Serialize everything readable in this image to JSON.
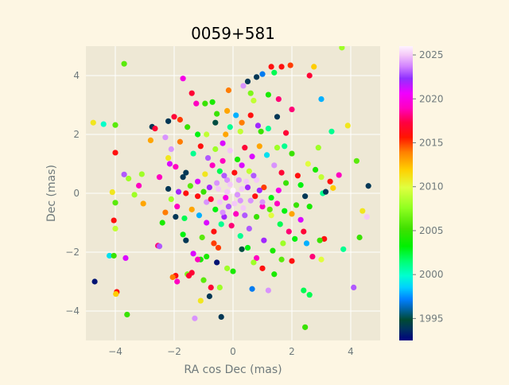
{
  "chart_data": {
    "type": "scatter",
    "title": "0059+581",
    "xlabel": "RA cos Dec (mas)",
    "ylabel": "Dec (mas)",
    "xlim": [
      -5,
      5
    ],
    "ylim": [
      -5,
      5
    ],
    "xticks": [
      -4,
      -2,
      0,
      2,
      4
    ],
    "yticks": [
      -4,
      -2,
      0,
      2,
      4
    ],
    "grid": true,
    "colorbar": {
      "label": "",
      "range": [
        1992.5,
        2026
      ],
      "ticks": [
        1995,
        2000,
        2005,
        2010,
        2015,
        2020,
        2025
      ],
      "colormap": "gist_ncar"
    },
    "points": [
      [
        -4.7,
        -3.0,
        1993
      ],
      [
        -4.4,
        2.35,
        2000
      ],
      [
        -4.75,
        2.4,
        2011
      ],
      [
        -4.2,
        -2.12,
        1999
      ],
      [
        -4.05,
        -2.12,
        2005
      ],
      [
        -4.0,
        1.38,
        2016
      ],
      [
        -4.05,
        -0.92,
        2016
      ],
      [
        -3.95,
        -3.35,
        2016
      ],
      [
        -3.98,
        -3.42,
        2012
      ],
      [
        -3.7,
        4.4,
        2006
      ],
      [
        -3.6,
        -4.12,
        2005
      ],
      [
        -3.65,
        -2.2,
        2021
      ],
      [
        -3.7,
        0.64,
        2023
      ],
      [
        -3.55,
        0.5,
        2008
      ],
      [
        -3.2,
        0.26,
        2019
      ],
      [
        -3.1,
        0.65,
        2008
      ],
      [
        -3.05,
        -0.35,
        2013
      ],
      [
        -4.1,
        0.04,
        2011
      ],
      [
        -4.0,
        -1.2,
        2009
      ],
      [
        -4.0,
        -0.32,
        2006
      ],
      [
        -4.0,
        2.32,
        2006
      ],
      [
        -2.8,
        1.8,
        2013
      ],
      [
        -2.75,
        2.26,
        1994
      ],
      [
        -2.65,
        2.2,
        2017
      ],
      [
        -2.55,
        -1.78,
        2018
      ],
      [
        -2.5,
        -1.8,
        2023
      ],
      [
        -2.3,
        -0.65,
        2014
      ],
      [
        -2.2,
        0.15,
        1994
      ],
      [
        -2.15,
        1.0,
        2021
      ],
      [
        -2.1,
        1.5,
        2024
      ],
      [
        -2.0,
        2.6,
        2017
      ],
      [
        -1.95,
        -0.8,
        1994
      ],
      [
        -1.8,
        2.5,
        2015
      ],
      [
        -1.7,
        3.9,
        2020
      ],
      [
        -1.6,
        0.7,
        1994
      ],
      [
        -1.6,
        -1.6,
        1994
      ],
      [
        -1.55,
        -2.75,
        2007
      ],
      [
        -1.4,
        -2.7,
        2017
      ],
      [
        -1.4,
        3.4,
        2017
      ],
      [
        -1.3,
        -4.25,
        2024
      ],
      [
        -1.25,
        3.05,
        2019
      ],
      [
        -1.2,
        2.0,
        2003
      ],
      [
        -1.1,
        -3.65,
        2011
      ],
      [
        -1.1,
        -2.25,
        2004
      ],
      [
        -0.95,
        3.05,
        2005
      ],
      [
        -0.9,
        2.0,
        2009
      ],
      [
        -0.8,
        -3.5,
        1994
      ],
      [
        -0.75,
        -3.2,
        2017
      ],
      [
        -0.7,
        3.1,
        2004
      ],
      [
        -0.6,
        2.4,
        1995
      ],
      [
        -0.45,
        -3.2,
        2008
      ],
      [
        -0.4,
        -4.2,
        1994
      ],
      [
        -0.35,
        1.7,
        2021
      ],
      [
        -0.2,
        2.8,
        2013
      ],
      [
        -0.15,
        3.5,
        2014
      ],
      [
        -0.1,
        2.25,
        2001
      ],
      [
        0.1,
        2.65,
        1998
      ],
      [
        0.3,
        2.4,
        2014
      ],
      [
        0.35,
        3.65,
        2024
      ],
      [
        0.5,
        3.8,
        1994
      ],
      [
        0.6,
        3.4,
        2007
      ],
      [
        0.7,
        3.15,
        2009
      ],
      [
        0.8,
        3.95,
        1994
      ],
      [
        0.85,
        2.3,
        2022
      ],
      [
        1.0,
        4.05,
        1997
      ],
      [
        1.2,
        3.35,
        2004
      ],
      [
        1.3,
        4.3,
        2016
      ],
      [
        1.4,
        4.1,
        2002
      ],
      [
        1.5,
        2.6,
        1994
      ],
      [
        1.55,
        3.2,
        2018
      ],
      [
        1.65,
        4.3,
        2016
      ],
      [
        1.95,
        4.35,
        2015
      ],
      [
        2.0,
        2.85,
        2018
      ],
      [
        2.6,
        4.0,
        2017
      ],
      [
        2.75,
        4.3,
        2012
      ],
      [
        3.0,
        3.2,
        1998
      ],
      [
        3.7,
        4.95,
        2008
      ],
      [
        3.9,
        2.3,
        2011
      ],
      [
        3.35,
        2.1,
        2001
      ],
      [
        2.9,
        1.55,
        2008
      ],
      [
        2.55,
        1.0,
        2010
      ],
      [
        2.8,
        0.8,
        2004
      ],
      [
        3.0,
        0.55,
        2009
      ],
      [
        3.3,
        0.4,
        2016
      ],
      [
        3.4,
        0.18,
        2012
      ],
      [
        3.6,
        0.62,
        2019
      ],
      [
        4.2,
        1.1,
        2006
      ],
      [
        4.6,
        0.25,
        1994
      ],
      [
        4.4,
        -0.6,
        2011
      ],
      [
        4.55,
        -0.8,
        2025
      ],
      [
        4.3,
        -1.5,
        2005
      ],
      [
        3.75,
        -1.9,
        2001
      ],
      [
        4.1,
        -3.2,
        2023
      ],
      [
        3.1,
        -1.55,
        2016
      ],
      [
        2.95,
        -1.6,
        2005
      ],
      [
        3.0,
        -2.25,
        2010
      ],
      [
        2.5,
        -1.7,
        1998
      ],
      [
        2.45,
        -4.55,
        2005
      ],
      [
        2.6,
        -3.45,
        2002
      ],
      [
        2.4,
        -3.3,
        2002
      ],
      [
        2.0,
        -2.3,
        2016
      ],
      [
        1.65,
        -2.25,
        2006
      ],
      [
        1.4,
        -2.75,
        2004
      ],
      [
        1.2,
        -3.3,
        2024
      ],
      [
        1.0,
        -2.55,
        2016
      ],
      [
        0.8,
        -2.2,
        2019
      ],
      [
        0.7,
        -2.35,
        2008
      ],
      [
        0.65,
        -3.25,
        1997
      ],
      [
        0.5,
        -1.85,
        2003
      ],
      [
        0.3,
        -1.9,
        1995
      ],
      [
        0.0,
        -2.65,
        2004
      ],
      [
        -0.2,
        -2.55,
        2008
      ],
      [
        -0.55,
        -2.35,
        1993
      ],
      [
        -0.65,
        -1.7,
        2015
      ],
      [
        -0.9,
        -2.15,
        2004
      ],
      [
        -1.0,
        -2.95,
        2006
      ],
      [
        -1.2,
        -2.25,
        2019
      ],
      [
        -1.35,
        -2.05,
        2021
      ],
      [
        -1.5,
        -2.8,
        2017
      ],
      [
        -1.7,
        -1.4,
        2003
      ],
      [
        -1.9,
        -3.0,
        2019
      ],
      [
        -1.95,
        -2.8,
        2016
      ],
      [
        -2.05,
        -2.85,
        2014
      ],
      [
        -1.55,
        2.25,
        2005
      ],
      [
        -0.25,
        2.0,
        2013
      ],
      [
        0.25,
        2.1,
        2009
      ],
      [
        0.95,
        2.1,
        2005
      ],
      [
        1.2,
        2.2,
        2001
      ],
      [
        1.5,
        1.55,
        2008
      ],
      [
        1.75,
        1.6,
        2001
      ],
      [
        2.0,
        1.35,
        2005
      ],
      [
        2.2,
        0.6,
        2016
      ],
      [
        2.3,
        0.28,
        2003
      ],
      [
        2.45,
        -0.1,
        1994
      ],
      [
        2.15,
        -0.4,
        2005
      ],
      [
        2.3,
        -0.9,
        2021
      ],
      [
        1.9,
        -1.3,
        2018
      ],
      [
        1.6,
        -1.05,
        2002
      ],
      [
        1.3,
        -0.75,
        2010
      ],
      [
        1.0,
        -0.45,
        2019
      ],
      [
        0.8,
        -0.8,
        2005
      ],
      [
        0.55,
        -1.2,
        2023
      ],
      [
        0.25,
        -1.45,
        2001
      ],
      [
        -0.05,
        -1.1,
        2018
      ],
      [
        -0.3,
        -0.8,
        2022
      ],
      [
        -0.6,
        -0.55,
        2003
      ],
      [
        -0.9,
        -0.3,
        2024
      ],
      [
        -1.2,
        -0.1,
        2016
      ],
      [
        -1.45,
        0.25,
        2006
      ],
      [
        -1.7,
        0.55,
        1994
      ],
      [
        -1.95,
        0.9,
        2019
      ],
      [
        -2.2,
        1.2,
        2011
      ],
      [
        -1.35,
        1.35,
        2001
      ],
      [
        -1.1,
        1.6,
        2016
      ],
      [
        -0.85,
        1.2,
        2023
      ],
      [
        -0.6,
        1.5,
        2008
      ],
      [
        -0.35,
        1.1,
        2019
      ],
      [
        -0.1,
        1.45,
        2025
      ],
      [
        0.15,
        1.15,
        2004
      ],
      [
        0.4,
        1.55,
        2017
      ],
      [
        0.65,
        1.25,
        2021
      ],
      [
        0.9,
        1.6,
        2013
      ],
      [
        1.15,
        1.3,
        1999
      ],
      [
        1.4,
        0.95,
        2024
      ],
      [
        1.65,
        0.7,
        2017
      ],
      [
        1.8,
        0.35,
        2005
      ],
      [
        1.55,
        0.1,
        2020
      ],
      [
        1.3,
        -0.15,
        2003
      ],
      [
        1.05,
        0.2,
        2015
      ],
      [
        0.8,
        0.45,
        2025
      ],
      [
        0.55,
        0.75,
        2009
      ],
      [
        0.3,
        0.95,
        2021
      ],
      [
        0.05,
        0.7,
        2016
      ],
      [
        -0.2,
        0.45,
        2024
      ],
      [
        -0.45,
        0.75,
        2002
      ],
      [
        -0.7,
        0.95,
        2019
      ],
      [
        -0.95,
        0.65,
        2011
      ],
      [
        -1.2,
        0.4,
        2021
      ],
      [
        -1.0,
        0.05,
        2005
      ],
      [
        -0.75,
        -0.2,
        2017
      ],
      [
        -0.5,
        0.15,
        2025
      ],
      [
        -0.25,
        -0.15,
        2020
      ],
      [
        0.0,
        0.1,
        2026
      ],
      [
        0.25,
        -0.25,
        2024
      ],
      [
        0.5,
        0.2,
        2022
      ],
      [
        0.75,
        -0.1,
        2016
      ],
      [
        1.0,
        -0.3,
        2024
      ],
      [
        1.25,
        -0.55,
        2006
      ],
      [
        1.5,
        -0.35,
        2019
      ],
      [
        1.75,
        -0.6,
        2003
      ],
      [
        2.0,
        -0.7,
        2013
      ],
      [
        0.35,
        -0.5,
        2025
      ],
      [
        0.1,
        -0.7,
        2019
      ],
      [
        -0.15,
        -0.45,
        2023
      ],
      [
        -0.4,
        -1.05,
        2001
      ],
      [
        -0.65,
        -1.3,
        2016
      ],
      [
        -0.9,
        -1.0,
        2021
      ],
      [
        -1.15,
        -0.75,
        1998
      ],
      [
        -1.4,
        -0.55,
        2013
      ],
      [
        -1.65,
        -0.85,
        2002
      ],
      [
        -1.9,
        -0.45,
        2019
      ],
      [
        -2.1,
        -0.2,
        2008
      ],
      [
        -1.85,
        0.05,
        2022
      ],
      [
        -1.6,
        0.0,
        2016
      ],
      [
        0.45,
        0.4,
        2025
      ],
      [
        -0.1,
        0.3,
        2025
      ],
      [
        0.2,
        0.45,
        2024
      ],
      [
        -0.3,
        0.6,
        2023
      ],
      [
        0.6,
        -0.25,
        2024
      ],
      [
        0.05,
        -0.35,
        2025
      ],
      [
        -0.45,
        -0.3,
        2025
      ],
      [
        0.3,
        0.15,
        2025
      ],
      [
        0.15,
        -0.05,
        2024
      ],
      [
        -0.2,
        0.05,
        2025
      ],
      [
        0.7,
        0.6,
        2023
      ],
      [
        -0.55,
        0.35,
        2024
      ],
      [
        0.9,
        0.1,
        2022
      ],
      [
        -0.8,
        0.2,
        2022
      ],
      [
        0.4,
        -0.75,
        2023
      ],
      [
        -0.35,
        -0.65,
        2024
      ],
      [
        1.7,
        -1.7,
        2008
      ],
      [
        2.1,
        -1.55,
        2003
      ],
      [
        2.4,
        -1.3,
        2017
      ],
      [
        2.6,
        -0.45,
        2004
      ],
      [
        -2.4,
        -1.0,
        2004
      ],
      [
        -2.5,
        0.55,
        2019
      ],
      [
        -2.3,
        1.9,
        2024
      ],
      [
        -2.2,
        2.45,
        1994
      ],
      [
        -0.5,
        -1.85,
        2015
      ],
      [
        -1.05,
        -1.5,
        2006
      ],
      [
        1.05,
        -1.6,
        2022
      ],
      [
        1.35,
        -1.95,
        2004
      ],
      [
        0.6,
        2.65,
        2016
      ],
      [
        -0.55,
        2.7,
        2005
      ],
      [
        1.8,
        2.05,
        2017
      ],
      [
        -1.8,
        1.75,
        2014
      ],
      [
        2.7,
        -2.15,
        2018
      ],
      [
        3.05,
        0.0,
        2001
      ],
      [
        3.15,
        0.05,
        1994
      ],
      [
        -3.35,
        -0.05,
        2008
      ]
    ]
  }
}
